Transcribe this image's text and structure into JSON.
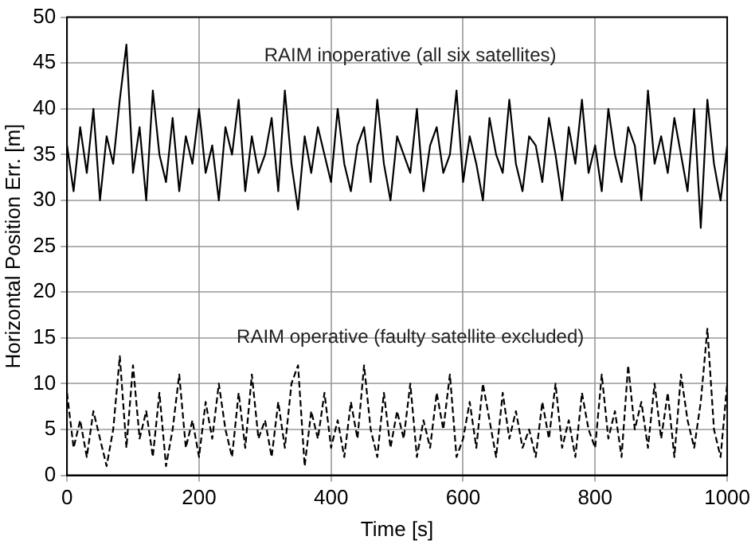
{
  "chart_data": {
    "type": "line",
    "xlabel": "Time [s]",
    "ylabel": "Horizontal Position Err. [m]",
    "x": [
      0,
      10,
      20,
      30,
      40,
      50,
      60,
      70,
      80,
      90,
      100,
      110,
      120,
      130,
      140,
      150,
      160,
      170,
      180,
      190,
      200,
      210,
      220,
      230,
      240,
      250,
      260,
      270,
      280,
      290,
      300,
      310,
      320,
      330,
      340,
      350,
      360,
      370,
      380,
      390,
      400,
      410,
      420,
      430,
      440,
      450,
      460,
      470,
      480,
      490,
      500,
      510,
      520,
      530,
      540,
      550,
      560,
      570,
      580,
      590,
      600,
      610,
      620,
      630,
      640,
      650,
      660,
      670,
      680,
      690,
      700,
      710,
      720,
      730,
      740,
      750,
      760,
      770,
      780,
      790,
      800,
      810,
      820,
      830,
      840,
      850,
      860,
      870,
      880,
      890,
      900,
      910,
      920,
      930,
      940,
      950,
      960,
      970,
      980,
      990,
      1000
    ],
    "series": [
      {
        "color": "#000000",
        "line_style": "solid",
        "values": [
          36,
          31,
          38,
          33,
          40,
          30,
          37,
          34,
          41,
          47,
          33,
          38,
          30,
          42,
          35,
          32,
          39,
          31,
          37,
          34,
          40,
          33,
          36,
          30,
          38,
          35,
          41,
          31,
          37,
          33,
          35,
          39,
          31,
          42,
          34,
          29,
          37,
          33,
          38,
          35,
          32,
          40,
          34,
          31,
          36,
          38,
          32,
          41,
          34,
          30,
          37,
          35,
          33,
          40,
          31,
          36,
          38,
          33,
          35,
          42,
          32,
          37,
          34,
          30,
          39,
          35,
          33,
          41,
          34,
          31,
          37,
          36,
          32,
          39,
          35,
          30,
          38,
          34,
          41,
          33,
          36,
          31,
          40,
          35,
          32,
          38,
          36,
          30,
          42,
          34,
          37,
          33,
          39,
          35,
          31,
          40,
          27,
          41,
          34,
          30,
          36
        ]
      },
      {
        "color": "#000000",
        "line_style": "dashed",
        "values": [
          9,
          3,
          6,
          2,
          7,
          4,
          1,
          5,
          13,
          3,
          12,
          4,
          7,
          2,
          9,
          1,
          5,
          11,
          3,
          6,
          2,
          8,
          4,
          10,
          5,
          2,
          9,
          3,
          11,
          4,
          6,
          2,
          8,
          3,
          10,
          12,
          1,
          7,
          4,
          9,
          3,
          6,
          2,
          8,
          4,
          12,
          5,
          2,
          9,
          3,
          7,
          4,
          10,
          2,
          6,
          3,
          9,
          5,
          11,
          2,
          4,
          8,
          3,
          10,
          6,
          2,
          9,
          4,
          7,
          3,
          5,
          2,
          8,
          4,
          10,
          3,
          6,
          2,
          9,
          5,
          3,
          11,
          4,
          7,
          2,
          12,
          5,
          8,
          3,
          10,
          4,
          9,
          2,
          11,
          6,
          3,
          8,
          16,
          5,
          2,
          10
        ]
      }
    ],
    "xlim": [
      0,
      1000
    ],
    "xticks": [
      0,
      200,
      400,
      600,
      800,
      1000
    ],
    "ylim": [
      0,
      50
    ],
    "yticks": [
      0,
      5,
      10,
      15,
      20,
      25,
      30,
      35,
      40,
      45,
      50
    ],
    "grid": true,
    "legend": false,
    "marker": "none",
    "annotations": [
      "RAIM inoperative (all six satellites)",
      "RAIM operative (faulty satellite excluded)"
    ]
  }
}
